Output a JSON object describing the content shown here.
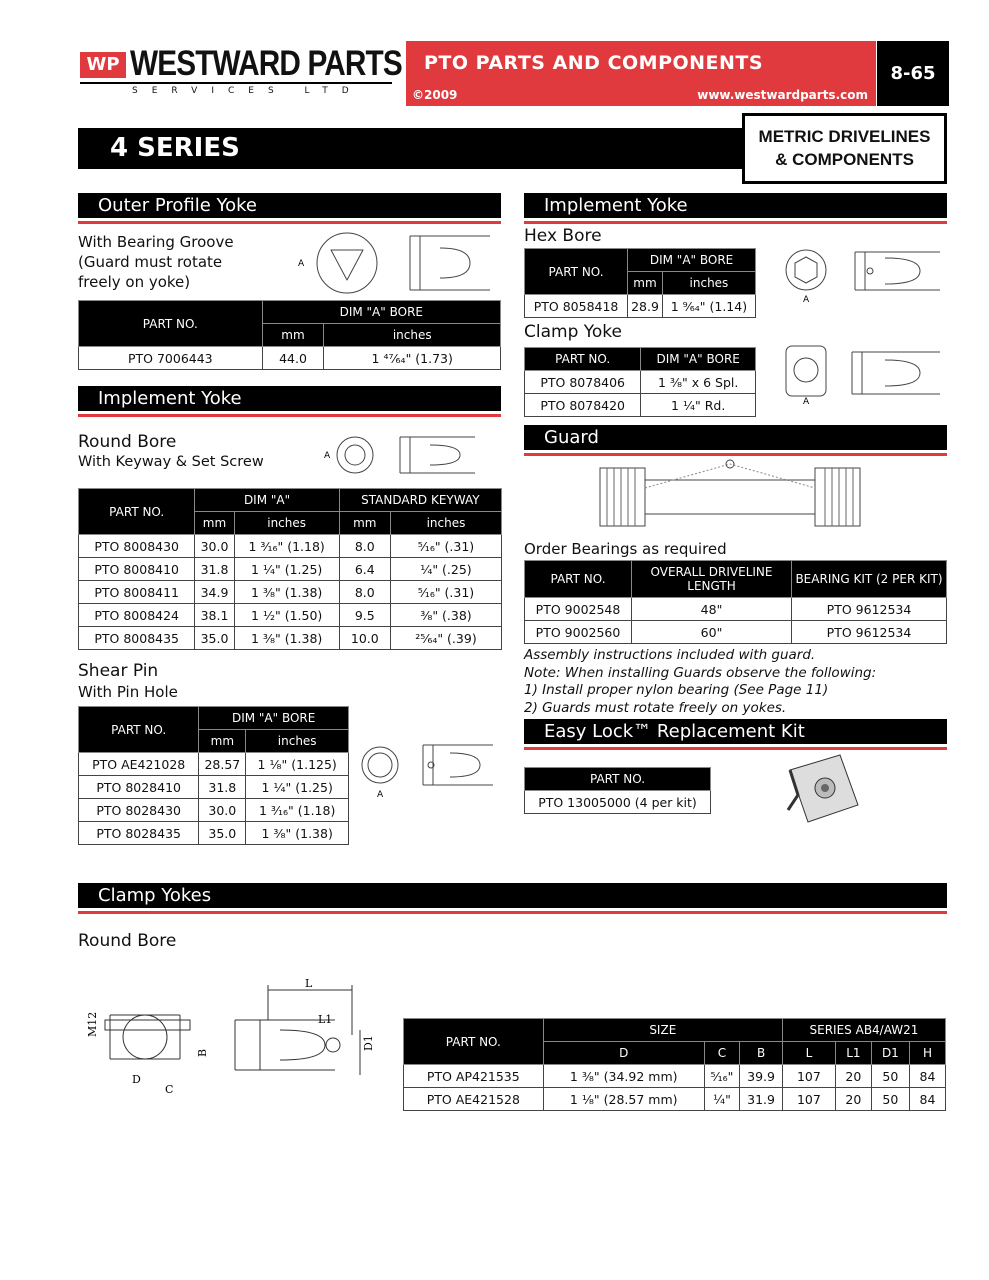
{
  "header": {
    "logo_mark": "WP",
    "brand": "WESTWARD PARTS",
    "brand_sub": "SERVICES LTD",
    "title": "PTO PARTS AND COMPONENTS",
    "copyright": "©2009",
    "url": "www.westwardparts.com",
    "page": "8-65"
  },
  "series_title": "4 SERIES",
  "category": [
    "METRIC DRIVELINES",
    "& COMPONENTS"
  ],
  "outer_profile": {
    "heading": "Outer Profile Yoke",
    "desc": [
      "With Bearing Groove",
      "(Guard must rotate",
      "freely on yoke)"
    ],
    "h": [
      "PART NO.",
      "DIM \"A\" BORE",
      "mm",
      "inches"
    ],
    "rows": [
      [
        "PTO 7006443",
        "44.0",
        "1 ⁴⁷⁄₆₄\" (1.73)"
      ]
    ]
  },
  "implement_left": {
    "heading": "Implement Yoke",
    "label": "Round Bore",
    "sub": "With Keyway & Set Screw",
    "h": [
      "PART NO.",
      "DIM \"A\"",
      "STANDARD KEYWAY",
      "mm",
      "inches",
      "mm",
      "inches"
    ],
    "rows": [
      [
        "PTO 8008430",
        "30.0",
        "1 ³⁄₁₆\" (1.18)",
        "8.0",
        "⁵⁄₁₆\" (.31)"
      ],
      [
        "PTO 8008410",
        "31.8",
        "1 ¹⁄₄\" (1.25)",
        "6.4",
        "¹⁄₄\" (.25)"
      ],
      [
        "PTO 8008411",
        "34.9",
        "1 ³⁄₈\" (1.38)",
        "8.0",
        "⁵⁄₁₆\" (.31)"
      ],
      [
        "PTO 8008424",
        "38.1",
        "1 ¹⁄₂\" (1.50)",
        "9.5",
        "³⁄₈\" (.38)"
      ],
      [
        "PTO 8008435",
        "35.0",
        "1 ³⁄₈\" (1.38)",
        "10.0",
        "²⁵⁄₆₄\" (.39)"
      ]
    ]
  },
  "shear_pin": {
    "label": "Shear Pin",
    "sub": "With Pin Hole",
    "h": [
      "PART NO.",
      "DIM \"A\" BORE",
      "mm",
      "inches"
    ],
    "rows": [
      [
        "PTO AE421028",
        "28.57",
        "1 ¹⁄₈\" (1.125)"
      ],
      [
        "PTO 8028410",
        "31.8",
        "1 ¹⁄₄\"  (1.25)"
      ],
      [
        "PTO 8028430",
        "30.0",
        "1 ³⁄₁₆\"  (1.18)"
      ],
      [
        "PTO 8028435",
        "35.0",
        "1 ³⁄₈\" (1.38)"
      ]
    ]
  },
  "implement_right": {
    "heading": "Implement Yoke",
    "hex_label": "Hex Bore",
    "hex_h": [
      "PART NO.",
      "DIM \"A\" BORE",
      "mm",
      "inches"
    ],
    "hex_rows": [
      [
        "PTO 8058418",
        "28.9",
        "1 ⁹⁄₆₄\"  (1.14)"
      ]
    ],
    "clamp_label": "Clamp Yoke",
    "clamp_h": [
      "PART NO.",
      "DIM \"A\" BORE"
    ],
    "clamp_rows": [
      [
        "PTO 8078406",
        "1 ³⁄₈\" x 6 Spl."
      ],
      [
        "PTO 8078420",
        "1 ¹⁄₄\" Rd."
      ]
    ]
  },
  "guard": {
    "heading": "Guard",
    "label": "Order Bearings as required",
    "h": [
      "PART NO.",
      "OVERALL DRIVELINE LENGTH",
      "BEARING KIT (2 PER KIT)"
    ],
    "rows": [
      [
        "PTO 9002548",
        "48\"",
        "PTO 9612534"
      ],
      [
        "PTO 9002560",
        "60\"",
        "PTO 9612534"
      ]
    ],
    "notes": [
      "Assembly instructions included with guard.",
      "Note: When installing Guards observe the following:",
      "1) Install proper nylon bearing (See Page 11)",
      "2) Guards must rotate freely on yokes."
    ]
  },
  "easy_lock": {
    "heading": "Easy Lock™ Replacement Kit",
    "h": [
      "PART NO."
    ],
    "rows": [
      [
        "PTO 13005000 (4 per kit)"
      ]
    ]
  },
  "clamp_yokes": {
    "heading": "Clamp Yokes",
    "label": "Round Bore",
    "dims": [
      "M12",
      "B",
      "D",
      "C",
      "L",
      "L1",
      "D1"
    ],
    "h": [
      "PART NO.",
      "SIZE",
      "SERIES AB4/AW21",
      "D",
      "C",
      "B",
      "L",
      "L1",
      "D1",
      "H"
    ],
    "rows": [
      [
        "PTO AP421535",
        "1 ³⁄₈\" (34.92 mm)",
        "⁵⁄₁₆\"",
        "39.9",
        "107",
        "20",
        "50",
        "84"
      ],
      [
        "PTO AE421528",
        "1 ¹⁄₈\" (28.57 mm)",
        "¼\"",
        "31.9",
        "107",
        "20",
        "50",
        "84"
      ]
    ]
  },
  "drawing_label": "A",
  "colors": {
    "brand_red": "#e03a3e",
    "black": "#000000"
  }
}
